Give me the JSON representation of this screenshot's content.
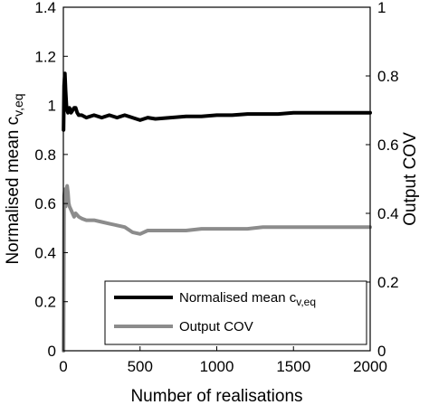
{
  "chart_data": {
    "type": "line",
    "xlabel": "Number of realisations",
    "ylabel_left": {
      "main": "Normalised mean c",
      "sub": "v,eq"
    },
    "ylabel_right": "Output COV",
    "xlim": [
      0,
      2000
    ],
    "ylim_left": [
      0,
      1.4
    ],
    "ylim_right": [
      0,
      1
    ],
    "x_ticks": [
      "0",
      "500",
      "1000",
      "1500",
      "2000"
    ],
    "y_ticks_left": [
      "0",
      "0.2",
      "0.4",
      "0.6",
      "0.8",
      "1",
      "1.2",
      "1.4"
    ],
    "y_ticks_right": [
      "0",
      "0.2",
      "0.4",
      "0.6",
      "0.8",
      "1"
    ],
    "grid": false,
    "legend_position": "bottom-right",
    "series": [
      {
        "name": "Normalised mean c",
        "name_sub": "v,eq",
        "axis": "left",
        "color": "#000000",
        "x": [
          1,
          5,
          10,
          15,
          20,
          25,
          30,
          40,
          50,
          60,
          70,
          80,
          90,
          100,
          120,
          150,
          200,
          250,
          300,
          350,
          400,
          450,
          500,
          550,
          600,
          700,
          800,
          900,
          1000,
          1100,
          1200,
          1300,
          1400,
          1500,
          1600,
          1700,
          1800,
          1900,
          2000
        ],
        "y": [
          0.9,
          1.08,
          1.13,
          1.06,
          1.0,
          0.98,
          0.97,
          0.99,
          0.97,
          0.98,
          0.99,
          0.99,
          0.97,
          0.96,
          0.96,
          0.95,
          0.96,
          0.95,
          0.96,
          0.95,
          0.96,
          0.95,
          0.94,
          0.95,
          0.945,
          0.95,
          0.955,
          0.955,
          0.96,
          0.96,
          0.965,
          0.965,
          0.965,
          0.97,
          0.97,
          0.97,
          0.97,
          0.97,
          0.97
        ]
      },
      {
        "name": "Output COV",
        "axis": "right",
        "color": "#8c8c8c",
        "x": [
          1,
          3,
          5,
          10,
          15,
          20,
          25,
          30,
          35,
          40,
          50,
          60,
          70,
          80,
          100,
          120,
          150,
          200,
          250,
          300,
          350,
          400,
          450,
          500,
          550,
          600,
          700,
          800,
          900,
          1000,
          1100,
          1200,
          1300,
          1400,
          1500,
          1600,
          1700,
          1800,
          1900,
          2000
        ],
        "y": [
          0.0,
          0.2,
          0.45,
          0.47,
          0.42,
          0.47,
          0.48,
          0.46,
          0.43,
          0.42,
          0.41,
          0.4,
          0.39,
          0.4,
          0.39,
          0.385,
          0.38,
          0.38,
          0.375,
          0.37,
          0.365,
          0.36,
          0.345,
          0.34,
          0.35,
          0.35,
          0.35,
          0.35,
          0.355,
          0.355,
          0.355,
          0.355,
          0.36,
          0.36,
          0.36,
          0.36,
          0.36,
          0.36,
          0.36,
          0.36
        ]
      }
    ]
  }
}
